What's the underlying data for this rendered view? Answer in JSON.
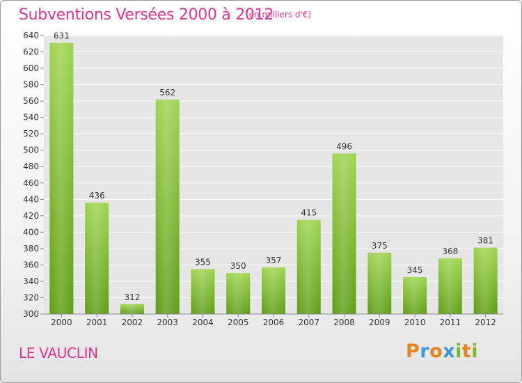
{
  "chart_data": {
    "type": "bar",
    "title": "Subventions Versées 2000 à 2012",
    "subtitle": "(en milliers d'€)",
    "categories": [
      "2000",
      "2001",
      "2002",
      "2003",
      "2004",
      "2005",
      "2006",
      "2007",
      "2008",
      "2009",
      "2010",
      "2011",
      "2012"
    ],
    "values": [
      631,
      436,
      312,
      562,
      355,
      350,
      357,
      415,
      496,
      375,
      345,
      368,
      381
    ],
    "ylim": [
      300,
      640
    ],
    "yticks": [
      300,
      320,
      340,
      360,
      380,
      400,
      420,
      440,
      460,
      480,
      500,
      520,
      540,
      560,
      580,
      600,
      620,
      640
    ],
    "grid": true,
    "bar_color_top": "#9ed450",
    "bar_color_bottom": "#5f9e15"
  },
  "footer": {
    "commune": "LE VAUCLIN",
    "logo_letters": [
      "P",
      "r",
      "o",
      "x",
      "i",
      "t",
      "i"
    ],
    "logo_colors": [
      "#e8841e",
      "#3a9ad9",
      "#e8841e",
      "#3a9ad9",
      "#7cb82f",
      "#e8841e",
      "#7cb82f"
    ]
  },
  "colors": {
    "accent": "#d8348f",
    "grid": "#ffffff",
    "plot_background": "#e6e6e6"
  }
}
